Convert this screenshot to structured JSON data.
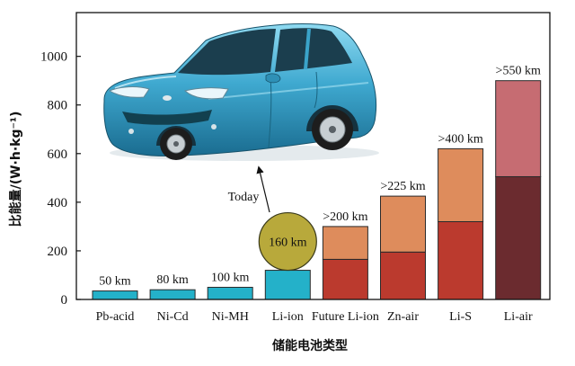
{
  "chart_data": {
    "type": "bar",
    "stacked": true,
    "xlabel": "储能电池类型",
    "ylabel": "比能量/(W·h·kg⁻¹)",
    "ylim": [
      0,
      1180
    ],
    "yticks": [
      0,
      200,
      400,
      600,
      800,
      1000
    ],
    "grid": false,
    "categories": [
      "Pb-acid",
      "Ni-Cd",
      "Ni-MH",
      "Li-ion",
      "Future Li-ion",
      "Zn-air",
      "Li-S",
      "Li-air"
    ],
    "series": [
      {
        "values": [
          35,
          40,
          50,
          120,
          165,
          195,
          320,
          505
        ],
        "colors": [
          "#24b1c9",
          "#24b1c9",
          "#24b1c9",
          "#24b1c9",
          "#bb3a2e",
          "#bb3a2e",
          "#bb3a2e",
          "#6b2b2f"
        ]
      },
      {
        "values": [
          null,
          null,
          null,
          null,
          135,
          230,
          300,
          395
        ],
        "colors": [
          null,
          null,
          null,
          null,
          "#de8c5c",
          "#de8c5c",
          "#de8c5c",
          "#c66c72"
        ]
      }
    ],
    "bar_labels": [
      {
        "text": "50 km",
        "circled": false
      },
      {
        "text": "80 km",
        "circled": false
      },
      {
        "text": "100 km",
        "circled": false
      },
      {
        "text": "160 km",
        "circled": true
      },
      {
        "text": ">200 km",
        "circled": false
      },
      {
        "text": ">225 km",
        "circled": false
      },
      {
        "text": ">400 km",
        "circled": false
      },
      {
        "text": ">550 km",
        "circled": false
      }
    ],
    "circle_color": "#b8a93b",
    "annotation": "Today"
  }
}
